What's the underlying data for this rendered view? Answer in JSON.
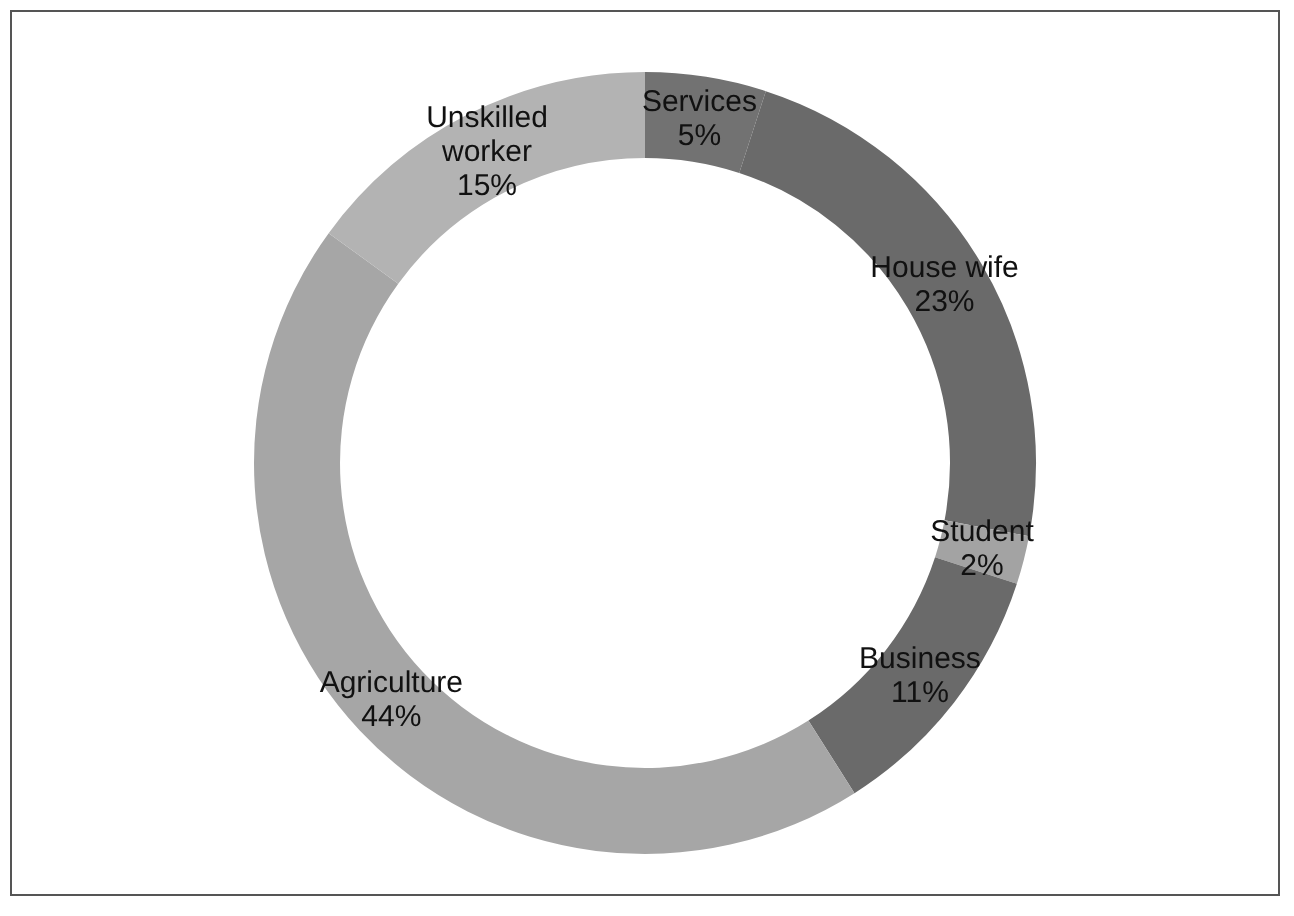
{
  "chart_data": {
    "type": "donut",
    "categories": [
      "Services",
      "House wife",
      "Student",
      "Business",
      "Agriculture",
      "Unskilled worker"
    ],
    "values": [
      5,
      23,
      2,
      11,
      44,
      15
    ],
    "value_labels": [
      "5%",
      "23%",
      "2%",
      "11%",
      "44%",
      "15%"
    ],
    "colors": [
      "#727272",
      "#6a6a6a",
      "#a3a3a3",
      "#6a6a6a",
      "#a6a6a6",
      "#b3b3b3"
    ],
    "legend": false
  }
}
